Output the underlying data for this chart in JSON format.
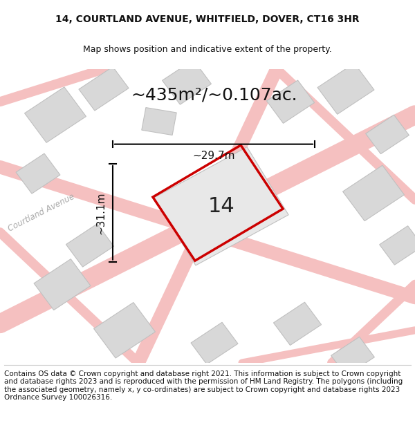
{
  "title_line1": "14, COURTLAND AVENUE, WHITFIELD, DOVER, CT16 3HR",
  "title_line2": "Map shows position and indicative extent of the property.",
  "area_text": "~435m²/~0.107ac.",
  "dim_height": "~31.1m",
  "dim_width": "~29.7m",
  "plot_number": "14",
  "footer_text": "Contains OS data © Crown copyright and database right 2021. This information is subject to Crown copyright and database rights 2023 and is reproduced with the permission of HM Land Registry. The polygons (including the associated geometry, namely x, y co-ordinates) are subject to Crown copyright and database rights 2023 Ordnance Survey 100026316.",
  "bg_color": "#f5f5f5",
  "map_bg": "#f0f0f0",
  "street_color": "#f5c0c0",
  "building_color": "#d8d8d8",
  "building_edge": "#c0c0c0",
  "plot_edge_color": "#cc0000",
  "road_label": "Courtland Avenue",
  "title_fontsize": 10,
  "subtitle_fontsize": 9,
  "area_fontsize": 18,
  "dim_fontsize": 11,
  "plot_num_fontsize": 22,
  "footer_fontsize": 7.5
}
